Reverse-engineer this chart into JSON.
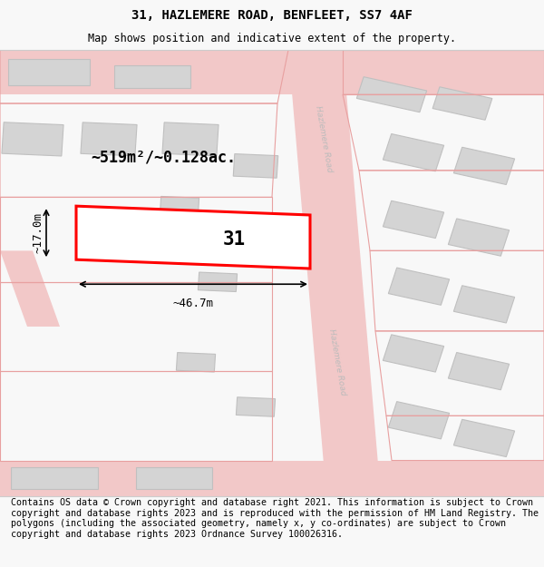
{
  "title": "31, HAZLEMERE ROAD, BENFLEET, SS7 4AF",
  "subtitle": "Map shows position and indicative extent of the property.",
  "footer": "Contains OS data © Crown copyright and database right 2021. This information is subject to Crown copyright and database rights 2023 and is reproduced with the permission of HM Land Registry. The polygons (including the associated geometry, namely x, y co-ordinates) are subject to Crown copyright and database rights 2023 Ordnance Survey 100026316.",
  "area_label": "~519m²/~0.128ac.",
  "width_label": "~46.7m",
  "height_label": "~17.0m",
  "number_label": "31",
  "bg_color": "#f8f8f8",
  "map_bg": "#efefef",
  "road_color": "#f2c8c8",
  "building_color": "#d4d4d4",
  "building_outline": "#c0c0c0",
  "highlight_color": "#ff0000",
  "title_fontsize": 10,
  "subtitle_fontsize": 8.5,
  "footer_fontsize": 7.2
}
